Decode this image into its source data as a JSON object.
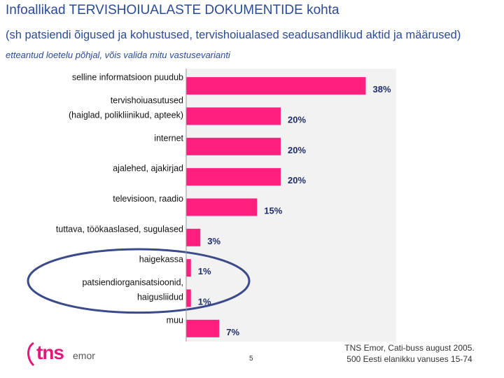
{
  "header": {
    "title": "Infoallikad TERVISHOIUALASTE DOKUMENTIDE kohta",
    "subtitle": "(sh patsiendi õigused ja kohustused, tervishoiualased seadusandlikud aktid ja määrused)",
    "note": "etteantud loetelu põhjal, võis valida mitu vastusevarianti"
  },
  "chart_data": {
    "type": "bar",
    "orientation": "horizontal",
    "categories": [
      [
        "selline informatsioon puudub"
      ],
      [
        "tervishoiuasutused",
        "(haiglad, polikliinikud, apteek)"
      ],
      [
        "internet"
      ],
      [
        "ajalehed, ajakirjad"
      ],
      [
        "televisioon, raadio"
      ],
      [
        "tuttava, töökaaslased, sugulased"
      ],
      [
        "haigekassa"
      ],
      [
        "patsiendiorganisatsioonid,",
        "haigusliidud"
      ],
      [
        "muu"
      ]
    ],
    "values": [
      38,
      20,
      20,
      20,
      15,
      3,
      1,
      1,
      7
    ],
    "data_labels": [
      "38%",
      "20%",
      "20%",
      "20%",
      "15%",
      "3%",
      "1%",
      "1%",
      "7%"
    ],
    "value_unit": "%",
    "xlim": [
      0,
      40
    ],
    "grid": false,
    "bar_color": "#ff1f7e",
    "highlighted_categories": [
      "haigekassa",
      "patsiendiorganisatsioonid, haigusliidud"
    ],
    "highlight_color": "#3a4a8a"
  },
  "footer": {
    "source_line1": "TNS Emor, Cati-buss august 2005.",
    "source_line2": "500 Eesti elanikku vanuses 15-74",
    "page_number": "5",
    "logo_text": "tns",
    "logo_subtext": "emor",
    "logo_color": "#e4187a"
  }
}
